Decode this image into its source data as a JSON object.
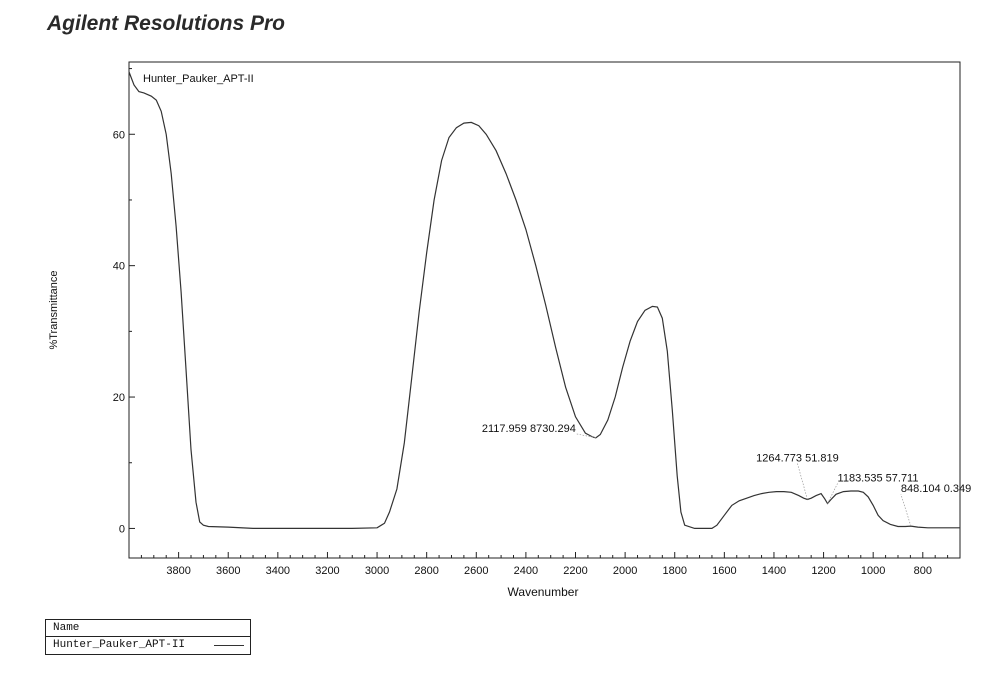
{
  "header": {
    "app_title": "Agilent Resolutions Pro"
  },
  "legend": {
    "header": "Name",
    "entries": [
      "Hunter_Pauker_APT-II"
    ]
  },
  "chart_data": {
    "type": "line",
    "title": "Hunter_Pauker_APT-II",
    "xlabel": "Wavenumber",
    "ylabel": "%Transmittance",
    "xlim": [
      4000,
      650
    ],
    "ylim": [
      -4.5,
      71
    ],
    "x_reversed": true,
    "x_ticks": [
      3800,
      3600,
      3400,
      3200,
      3000,
      2800,
      2600,
      2400,
      2200,
      2000,
      1800,
      1600,
      1400,
      1200,
      1000,
      800
    ],
    "y_ticks": [
      0,
      20,
      40,
      60
    ],
    "grid": false,
    "series": [
      {
        "name": "Hunter_Pauker_APT-II",
        "color": "#333333",
        "points": [
          [
            4000,
            69.5
          ],
          [
            3980,
            67.5
          ],
          [
            3960,
            66.5
          ],
          [
            3940,
            66.3
          ],
          [
            3910,
            65.8
          ],
          [
            3890,
            65.2
          ],
          [
            3870,
            63.5
          ],
          [
            3850,
            60
          ],
          [
            3830,
            54
          ],
          [
            3810,
            46
          ],
          [
            3790,
            36
          ],
          [
            3770,
            24
          ],
          [
            3750,
            12
          ],
          [
            3730,
            4
          ],
          [
            3715,
            1
          ],
          [
            3700,
            0.5
          ],
          [
            3680,
            0.3
          ],
          [
            3600,
            0.2
          ],
          [
            3500,
            0
          ],
          [
            3300,
            0
          ],
          [
            3100,
            0
          ],
          [
            3000,
            0.1
          ],
          [
            2970,
            0.8
          ],
          [
            2950,
            2.5
          ],
          [
            2920,
            6
          ],
          [
            2890,
            13
          ],
          [
            2860,
            23
          ],
          [
            2830,
            33
          ],
          [
            2800,
            42
          ],
          [
            2770,
            50
          ],
          [
            2740,
            56
          ],
          [
            2710,
            59.5
          ],
          [
            2680,
            61
          ],
          [
            2650,
            61.7
          ],
          [
            2620,
            61.8
          ],
          [
            2590,
            61.3
          ],
          [
            2560,
            60
          ],
          [
            2520,
            57.5
          ],
          [
            2480,
            54
          ],
          [
            2440,
            50
          ],
          [
            2400,
            45.5
          ],
          [
            2360,
            40
          ],
          [
            2320,
            34
          ],
          [
            2280,
            27.5
          ],
          [
            2240,
            21.5
          ],
          [
            2200,
            17
          ],
          [
            2160,
            14.5
          ],
          [
            2130,
            13.9
          ],
          [
            2118,
            13.8
          ],
          [
            2100,
            14.3
          ],
          [
            2070,
            16.5
          ],
          [
            2040,
            20
          ],
          [
            2010,
            24.5
          ],
          [
            1980,
            28.5
          ],
          [
            1950,
            31.5
          ],
          [
            1920,
            33.2
          ],
          [
            1890,
            33.8
          ],
          [
            1870,
            33.7
          ],
          [
            1850,
            32
          ],
          [
            1830,
            27
          ],
          [
            1810,
            18
          ],
          [
            1790,
            8
          ],
          [
            1775,
            2.5
          ],
          [
            1760,
            0.5
          ],
          [
            1720,
            0
          ],
          [
            1650,
            0
          ],
          [
            1630,
            0.5
          ],
          [
            1600,
            2
          ],
          [
            1570,
            3.5
          ],
          [
            1540,
            4.2
          ],
          [
            1510,
            4.6
          ],
          [
            1480,
            5
          ],
          [
            1450,
            5.3
          ],
          [
            1420,
            5.5
          ],
          [
            1390,
            5.6
          ],
          [
            1360,
            5.6
          ],
          [
            1330,
            5.5
          ],
          [
            1300,
            5
          ],
          [
            1280,
            4.6
          ],
          [
            1265,
            4.4
          ],
          [
            1250,
            4.6
          ],
          [
            1230,
            5
          ],
          [
            1210,
            5.3
          ],
          [
            1195,
            4.5
          ],
          [
            1184,
            3.8
          ],
          [
            1170,
            4.4
          ],
          [
            1150,
            5.2
          ],
          [
            1120,
            5.6
          ],
          [
            1090,
            5.7
          ],
          [
            1060,
            5.7
          ],
          [
            1040,
            5.5
          ],
          [
            1020,
            4.8
          ],
          [
            1000,
            3.5
          ],
          [
            980,
            2
          ],
          [
            960,
            1.2
          ],
          [
            930,
            0.6
          ],
          [
            900,
            0.3
          ],
          [
            870,
            0.3
          ],
          [
            848,
            0.35
          ],
          [
            820,
            0.2
          ],
          [
            780,
            0.1
          ],
          [
            700,
            0.1
          ],
          [
            650,
            0.1
          ]
        ]
      }
    ],
    "annotations": [
      {
        "text": "2117.959  8730.294",
        "x": 2118,
        "y": 13.8
      },
      {
        "text": "1264.773  51.819",
        "x": 1265,
        "y": 4.4
      },
      {
        "text": "1183.535  57.711",
        "x": 1184,
        "y": 3.8
      },
      {
        "text": "848.104  0.349",
        "x": 848,
        "y": 0.35
      }
    ]
  }
}
